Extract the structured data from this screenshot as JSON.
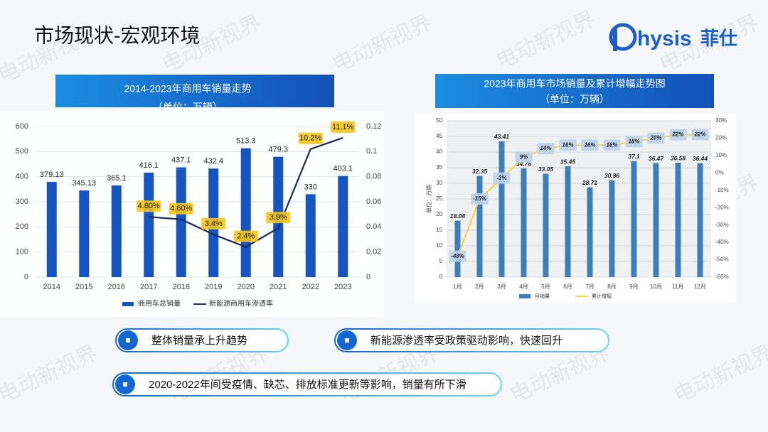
{
  "title": "市场现状-宏观环境",
  "logo": {
    "text": "hysis",
    "cn": "菲仕"
  },
  "watermark": "电动新视界",
  "chart_data": [
    {
      "type": "bar",
      "title": "2014-2023年商用车销量走势",
      "subtitle": "（单位：万辆）",
      "categories": [
        "2014",
        "2015",
        "2016",
        "2017",
        "2018",
        "2019",
        "2020",
        "2021",
        "2022",
        "2023"
      ],
      "series": [
        {
          "name": "商用车总销量",
          "type": "bar",
          "color": "#1654c0",
          "values": [
            379.13,
            345.13,
            365.1,
            416.1,
            437.1,
            432.4,
            513.3,
            479.3,
            330,
            403.1
          ]
        },
        {
          "name": "新能源商用车渗透率",
          "type": "line",
          "axis": "y2",
          "color": "#1f2a5a",
          "values": [
            null,
            null,
            null,
            0.048,
            0.046,
            0.034,
            0.024,
            0.039,
            0.102,
            0.111
          ],
          "value_labels": [
            null,
            null,
            null,
            "4.80%",
            "4.60%",
            "3.4%",
            "2.4%",
            "3.9%",
            "10.2%",
            "11.1%"
          ]
        }
      ],
      "ylim": [
        0,
        600
      ],
      "yticks": [
        0,
        100,
        200,
        300,
        400,
        500,
        600
      ],
      "y2lim": [
        0,
        0.12
      ],
      "y2ticks": [
        0,
        0.02,
        0.04,
        0.06,
        0.08,
        0.1,
        0.12
      ],
      "grid": true
    },
    {
      "type": "bar",
      "title": "2023年商用车市场销量及累计增幅走势图",
      "subtitle": "（单位：万辆）",
      "ylabel": "单位：万辆",
      "categories": [
        "1月",
        "2月",
        "3月",
        "4月",
        "5月",
        "6月",
        "7月",
        "8月",
        "9月",
        "10月",
        "11月",
        "12月"
      ],
      "series": [
        {
          "name": "月销量",
          "type": "bar",
          "color": "#3f7fb8",
          "values": [
            18.04,
            32.35,
            43.41,
            34.76,
            33.05,
            35.45,
            28.71,
            30.96,
            37.1,
            36.47,
            36.58,
            36.44
          ]
        },
        {
          "name": "累计增幅",
          "type": "line",
          "axis": "y2",
          "color": "#f5d24a",
          "values": [
            -48,
            -15,
            -3,
            9,
            14,
            16,
            16,
            16,
            18,
            20,
            22,
            22
          ],
          "value_labels": [
            "-48%",
            "-15%",
            "-3%",
            "9%",
            "14%",
            "16%",
            "16%",
            "16%",
            "18%",
            "20%",
            "22%",
            "22%"
          ]
        }
      ],
      "ylim": [
        0,
        50
      ],
      "yticks": [
        0,
        5,
        10,
        15,
        20,
        25,
        30,
        35,
        40,
        45,
        50
      ],
      "y2lim": [
        -60,
        30
      ],
      "y2ticks": [
        {
          "value": -60,
          "label": "-60%"
        },
        {
          "value": -50,
          "label": "-50%"
        },
        {
          "value": -40,
          "label": "-40%"
        },
        {
          "value": -30,
          "label": "-30%"
        },
        {
          "value": -20,
          "label": "-20%"
        },
        {
          "value": -10,
          "label": "-10%"
        },
        {
          "value": 0,
          "label": "0%"
        },
        {
          "value": 10,
          "label": "10%"
        },
        {
          "value": 20,
          "label": "20%"
        },
        {
          "value": 30,
          "label": "30%"
        }
      ],
      "grid": true
    }
  ],
  "bullets": [
    "整体销量承上升趋势",
    "新能源渗透率受政策驱动影响，快速回升",
    "2020-2022年间受疫情、缺芯、排放标准更新等影响，销量有所下滑"
  ]
}
